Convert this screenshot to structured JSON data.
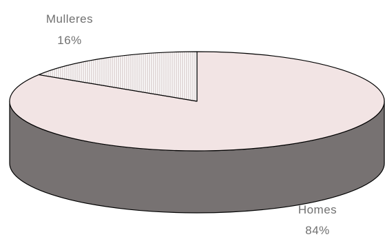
{
  "chart_data": {
    "type": "pie",
    "style": "3d",
    "slices": [
      {
        "label": "Homes",
        "value": 84,
        "value_label": "84%",
        "color": "#f2e4e4",
        "pattern": "none"
      },
      {
        "label": "Mulleres",
        "value": 16,
        "value_label": "16%",
        "color": "#ffffff",
        "pattern": "vertical-hatch"
      }
    ],
    "side_color": "#777272",
    "outline_color": "#000000",
    "legend": "none"
  }
}
